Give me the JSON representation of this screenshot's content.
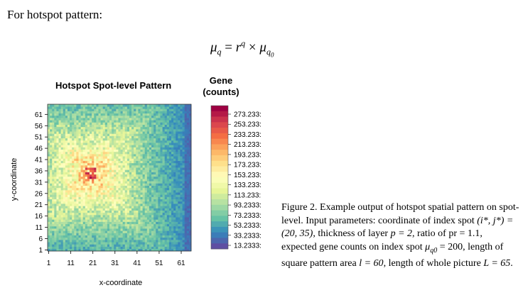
{
  "intro": "For hotspot pattern:",
  "formula": {
    "lhs_sym": "μ",
    "lhs_sub": "q",
    "eq": " = ",
    "r": "r",
    "r_sup": "q",
    "times": " × ",
    "rhs_sym": "μ",
    "rhs_sub": "q",
    "rhs_subsub": "0"
  },
  "plot": {
    "title": "Hotspot Spot-level Pattern",
    "xlabel": "x-coordinate",
    "ylabel": "y-coordinate"
  },
  "legend": {
    "title_line1": "Gene",
    "title_line2": "(counts)",
    "labels": [
      "273.233:",
      "253.233:",
      "233.233:",
      "213.233:",
      "193.233:",
      "173.233:",
      "153.233:",
      "133.233:",
      "113.233:",
      "93.2333:",
      "73.2333:",
      "53.2333:",
      "33.2333:",
      "13.2333:"
    ]
  },
  "chart_data": {
    "type": "heatmap",
    "title": "Hotspot Spot-level Pattern",
    "xlabel": "x-coordinate",
    "ylabel": "y-coordinate",
    "x_ticks": [
      1,
      11,
      21,
      31,
      41,
      51,
      61
    ],
    "y_ticks": [
      1,
      6,
      11,
      16,
      21,
      26,
      31,
      36,
      41,
      46,
      51,
      56,
      61
    ],
    "xlim": [
      1,
      65
    ],
    "ylim": [
      1,
      65
    ],
    "hotspot_center": [
      20,
      35
    ],
    "peak_value": 273.2333,
    "min_value": 13.2333,
    "colorscale_legend": "right",
    "colors": [
      "#9e0142",
      "#d53e4f",
      "#f46d43",
      "#fdae61",
      "#fee08b",
      "#ffffbf",
      "#e6f598",
      "#abdda4",
      "#66c2a5",
      "#3288bd",
      "#5e4fa2"
    ]
  },
  "caption": {
    "p1": "Figure 2. Example output of hotspot spatial pattern on spot-level. Input parameters: coordinate of index spot ",
    "m1": "(i*, j*) = (20, 35)",
    "p2": ", thickness of layer ",
    "m2": "p = 2",
    "p3": ", ratio of pr = 1.1, expected gene counts on index spot ",
    "m3": "μ",
    "m3sub": "q0",
    "m3b": " = 200",
    "p4": ", length of square pattern area ",
    "m4": "l = 60",
    "p5": ", length of whole picture ",
    "m5": "L = 65",
    "p6": "."
  }
}
